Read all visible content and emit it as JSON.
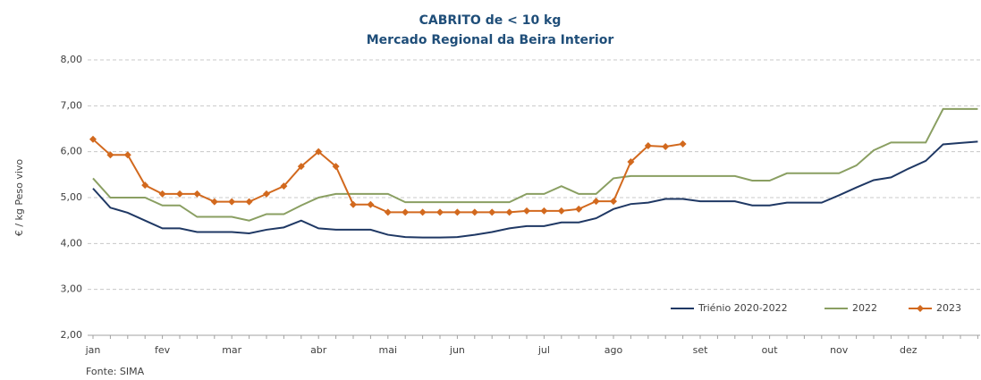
{
  "chart_data": {
    "type": "line",
    "title": "CABRITO de < 10 kg",
    "subtitle": "Mercado Regional da Beira Interior",
    "y_label": "€ / kg Peso vivo",
    "source": "Fonte: SIMA",
    "categories": [
      "jan",
      null,
      null,
      null,
      "fev",
      null,
      null,
      null,
      "mar",
      null,
      null,
      null,
      null,
      "abr",
      null,
      null,
      null,
      "mai",
      null,
      null,
      null,
      "jun",
      null,
      null,
      null,
      null,
      "jul",
      null,
      null,
      null,
      "ago",
      null,
      null,
      null,
      null,
      "set",
      null,
      null,
      null,
      "out",
      null,
      null,
      null,
      "nov",
      null,
      null,
      null,
      "dez",
      null,
      null,
      null,
      null
    ],
    "ylim": [
      2,
      8
    ],
    "yticks": [
      {
        "value": 2,
        "label": "2,00"
      },
      {
        "value": 3,
        "label": "3,00"
      },
      {
        "value": 4,
        "label": "4,00"
      },
      {
        "value": 5,
        "label": "5,00"
      },
      {
        "value": 6,
        "label": "6,00"
      },
      {
        "value": 7,
        "label": "7,00"
      },
      {
        "value": 8,
        "label": "8,00"
      }
    ],
    "grid": true,
    "legend": "bottom-right",
    "series": [
      {
        "name": "Triénio 2020-2022",
        "color": "#1f3864",
        "marker": false,
        "values": [
          5.2,
          4.78,
          4.67,
          4.5,
          4.33,
          4.33,
          4.25,
          4.25,
          4.25,
          4.22,
          4.3,
          4.35,
          4.5,
          4.33,
          4.3,
          4.3,
          4.3,
          4.19,
          4.14,
          4.13,
          4.13,
          4.14,
          4.19,
          4.25,
          4.33,
          4.38,
          4.38,
          4.46,
          4.46,
          4.55,
          4.75,
          4.86,
          4.89,
          4.97,
          4.97,
          4.92,
          4.92,
          4.92,
          4.83,
          4.83,
          4.89,
          4.89,
          4.89,
          5.05,
          5.22,
          5.38,
          5.44,
          5.63,
          5.8,
          6.16,
          6.19,
          6.22
        ]
      },
      {
        "name": "2022",
        "color": "#8a9f62",
        "marker": false,
        "values": [
          5.42,
          5.0,
          5.0,
          5.0,
          4.83,
          4.83,
          4.58,
          4.58,
          4.58,
          4.5,
          4.64,
          4.64,
          4.83,
          5.0,
          5.08,
          5.08,
          5.08,
          5.08,
          4.9,
          4.9,
          4.9,
          4.9,
          4.9,
          4.9,
          4.9,
          5.08,
          5.08,
          5.25,
          5.08,
          5.08,
          5.42,
          5.47,
          5.47,
          5.47,
          5.47,
          5.47,
          5.47,
          5.47,
          5.37,
          5.37,
          5.53,
          5.53,
          5.53,
          5.53,
          5.7,
          6.03,
          6.2,
          6.2,
          6.2,
          6.93,
          6.93,
          6.93
        ]
      },
      {
        "name": "2023",
        "color": "#d2691e",
        "marker": true,
        "values": [
          6.27,
          5.93,
          5.93,
          5.27,
          5.08,
          5.08,
          5.08,
          4.91,
          4.91,
          4.91,
          5.08,
          5.25,
          5.68,
          6.0,
          5.68,
          4.85,
          4.85,
          4.68,
          4.68,
          4.68,
          4.68,
          4.68,
          4.68,
          4.68,
          4.68,
          4.71,
          4.71,
          4.71,
          4.75,
          4.92,
          4.92,
          5.78,
          6.13,
          6.11,
          6.17,
          null,
          null,
          null,
          null,
          null,
          null,
          null,
          null,
          null,
          null,
          null,
          null,
          null,
          null,
          null,
          null,
          null
        ]
      }
    ]
  }
}
